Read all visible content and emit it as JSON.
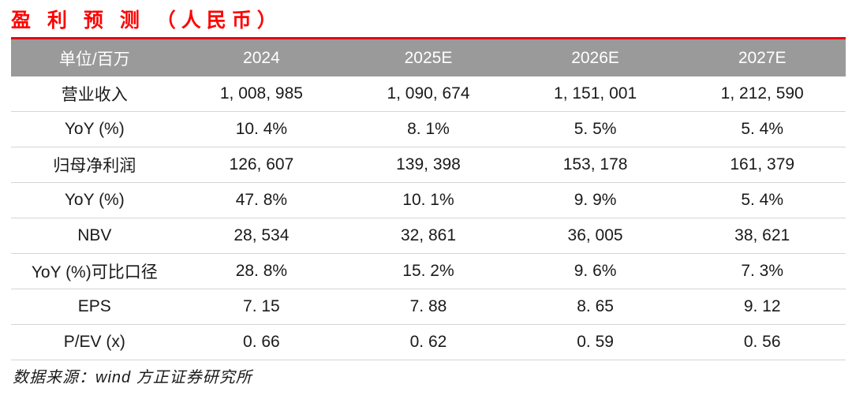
{
  "title": "盈 利 预 测 （人民币）",
  "colors": {
    "title_red": "#ff0000",
    "rule_red": "#e30613",
    "header_bg": "#9a9a9a",
    "header_text": "#ffffff",
    "row_divider": "#d5d5d5",
    "cell_text": "#1a1a1a"
  },
  "table": {
    "columns": [
      "单位/百万",
      "2024",
      "2025E",
      "2026E",
      "2027E"
    ],
    "rows": [
      {
        "label": "营业收入",
        "cells": [
          "1, 008, 985",
          "1, 090, 674",
          "1, 151, 001",
          "1, 212, 590"
        ]
      },
      {
        "label": "YoY (%)",
        "cells": [
          "10. 4%",
          "8. 1%",
          "5. 5%",
          "5. 4%"
        ]
      },
      {
        "label": "归母净利润",
        "cells": [
          "126, 607",
          "139, 398",
          "153, 178",
          "161, 379"
        ]
      },
      {
        "label": "YoY (%)",
        "cells": [
          "47. 8%",
          "10. 1%",
          "9. 9%",
          "5. 4%"
        ]
      },
      {
        "label": "NBV",
        "cells": [
          "28, 534",
          "32, 861",
          "36, 005",
          "38, 621"
        ]
      },
      {
        "label": "YoY (%)可比口径",
        "cells": [
          "28. 8%",
          "15. 2%",
          "9. 6%",
          "7. 3%"
        ]
      },
      {
        "label": "EPS",
        "cells": [
          "7. 15",
          "7. 88",
          "8. 65",
          "9. 12"
        ]
      },
      {
        "label": "P/EV (x)",
        "cells": [
          "0. 66",
          "0. 62",
          "0. 59",
          "0. 56"
        ]
      }
    ]
  },
  "footer": {
    "source": "数据来源：wind 方正证券研究所"
  },
  "chart_data": {
    "type": "table",
    "title": "盈利预测（人民币）",
    "unit_label": "单位/百万",
    "columns": [
      "2024",
      "2025E",
      "2026E",
      "2027E"
    ],
    "rows": [
      {
        "label": "营业收入",
        "values": [
          1008985,
          1090674,
          1151001,
          1212590
        ]
      },
      {
        "label": "YoY (%)",
        "values": [
          10.4,
          8.1,
          5.5,
          5.4
        ]
      },
      {
        "label": "归母净利润",
        "values": [
          126607,
          139398,
          153178,
          161379
        ]
      },
      {
        "label": "YoY (%)",
        "values": [
          47.8,
          10.1,
          9.9,
          5.4
        ]
      },
      {
        "label": "NBV",
        "values": [
          28534,
          32861,
          36005,
          38621
        ]
      },
      {
        "label": "YoY (%)可比口径",
        "values": [
          28.8,
          15.2,
          9.6,
          7.3
        ]
      },
      {
        "label": "EPS",
        "values": [
          7.15,
          7.88,
          8.65,
          9.12
        ]
      },
      {
        "label": "P/EV (x)",
        "values": [
          0.66,
          0.62,
          0.59,
          0.56
        ]
      }
    ],
    "source": "数据来源：wind 方正证券研究所"
  }
}
